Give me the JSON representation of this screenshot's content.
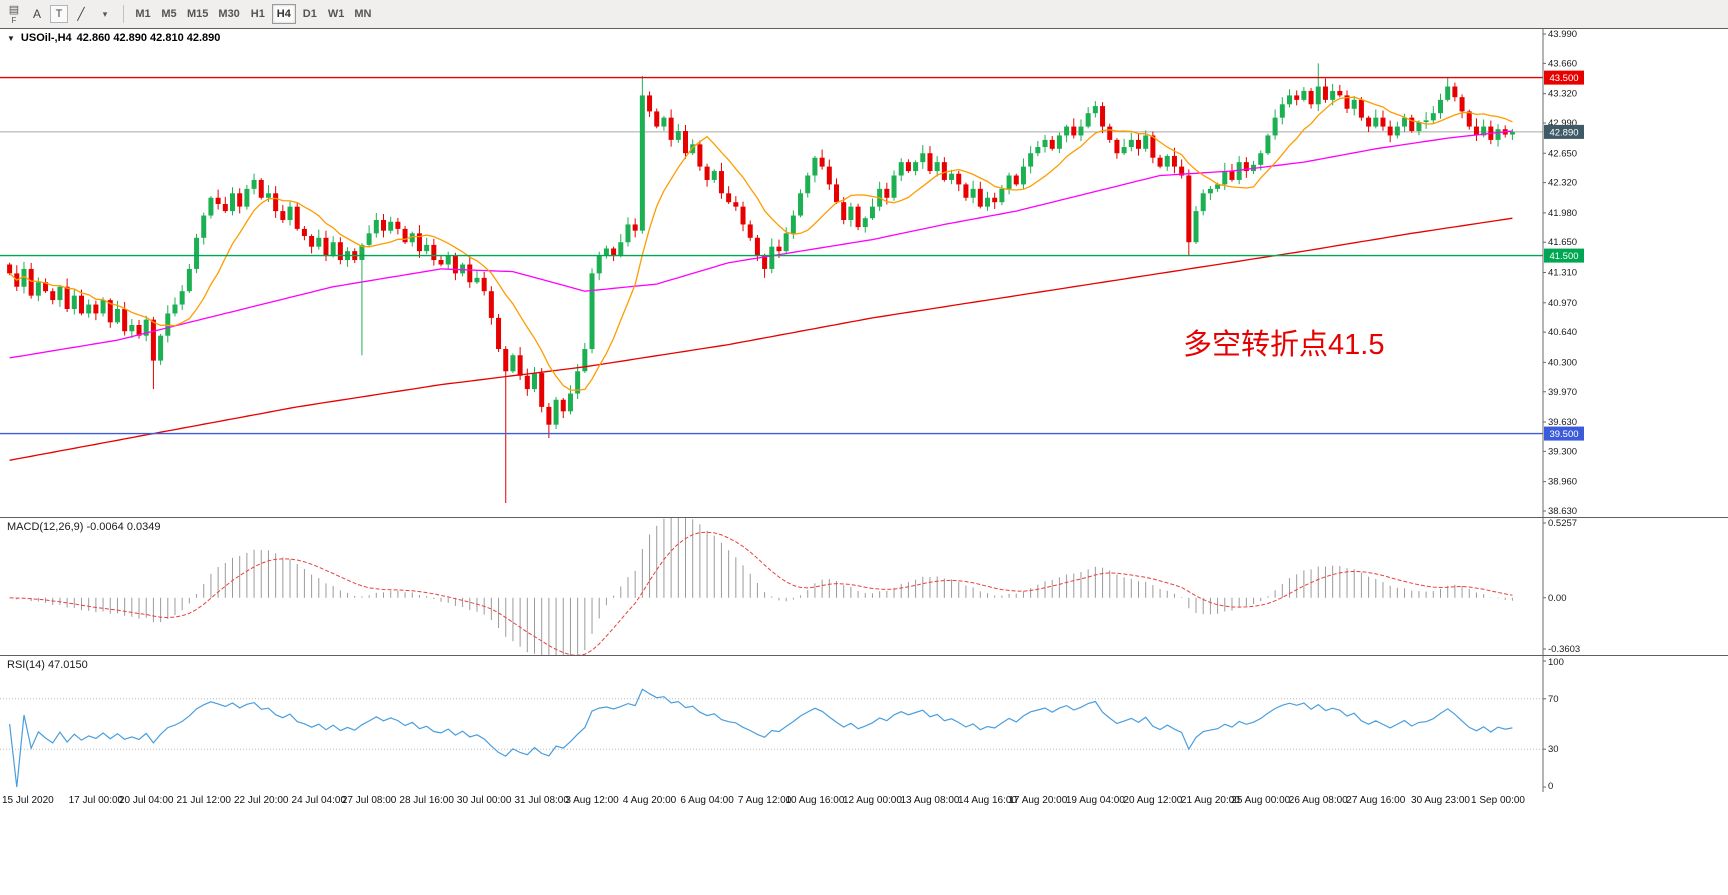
{
  "toolbar": {
    "stack_icon": "▤",
    "stack_label": "F",
    "buttons": [
      {
        "name": "cursor-tool",
        "glyph": "A"
      },
      {
        "name": "text-tool",
        "glyph": "T",
        "boxed": true
      },
      {
        "name": "draw-tool",
        "glyph": "╱"
      },
      {
        "name": "tools-caret",
        "glyph": "▾",
        "caret": true
      }
    ],
    "timeframes": [
      "M1",
      "M5",
      "M15",
      "M30",
      "H1",
      "H4",
      "D1",
      "W1",
      "MN"
    ],
    "active_timeframe": "H4"
  },
  "price_panel": {
    "header_triangle": "▼",
    "header_symbol": "USOil-,H4",
    "header_ohlc": "42.860 42.890 42.810 42.890",
    "annotation": {
      "text": "多空转折点41.5"
    }
  },
  "macd_panel": {
    "header": "MACD(12,26,9) -0.0064 0.0349"
  },
  "rsi_panel": {
    "header": "RSI(14) 47.0150"
  },
  "colors": {
    "up": "#1cb053",
    "down": "#e60000",
    "ma_fast": "#ff9c00",
    "ma_mid": "#ff00ff",
    "ma_slow": "#e60000",
    "hline_red": "#e60000",
    "hline_green": "#00a651",
    "hline_blue": "#3b5bdb",
    "bid_line": "#a8a8a8",
    "bid_tag": "#3d5a66",
    "macd_hist": "#9a9a9a",
    "macd_signal": "#e84040",
    "rsi": "#4a9ede",
    "annotation": "#e60000",
    "axis_text": "#1a1a1a"
  },
  "chart_data": {
    "type": "candlestick",
    "symbol": "USOil-",
    "timeframe": "H4",
    "title": "USOil-,H4 42.860 42.890 42.810 42.890",
    "price_range": [
      38.63,
      43.99
    ],
    "y_ticks": [
      "43.990",
      "43.660",
      "43.320",
      "42.990",
      "42.650",
      "42.320",
      "41.980",
      "41.650",
      "41.310",
      "40.970",
      "40.640",
      "40.300",
      "39.970",
      "39.630",
      "39.300",
      "38.960",
      "38.630"
    ],
    "open_first": 41.4,
    "closes": [
      41.3,
      41.15,
      41.35,
      41.05,
      41.2,
      41.1,
      41.0,
      41.15,
      40.9,
      41.05,
      40.85,
      40.95,
      40.85,
      41.0,
      40.75,
      40.9,
      40.65,
      40.72,
      40.6,
      40.78,
      40.32,
      40.6,
      40.85,
      40.95,
      41.1,
      41.35,
      41.7,
      41.95,
      42.15,
      42.08,
      42.0,
      42.2,
      42.05,
      42.25,
      42.35,
      42.15,
      42.2,
      42.0,
      41.9,
      42.05,
      41.8,
      41.72,
      41.6,
      41.7,
      41.5,
      41.65,
      41.45,
      41.55,
      41.45,
      41.62,
      41.75,
      41.9,
      41.78,
      41.88,
      41.8,
      41.65,
      41.75,
      41.55,
      41.62,
      41.45,
      41.4,
      41.5,
      41.3,
      41.4,
      41.2,
      41.25,
      41.1,
      40.8,
      40.45,
      40.2,
      40.38,
      40.15,
      40.0,
      40.18,
      39.8,
      39.6,
      39.88,
      39.75,
      39.95,
      40.2,
      40.45,
      41.3,
      41.5,
      41.58,
      41.5,
      41.65,
      41.85,
      41.78,
      43.3,
      43.12,
      42.95,
      43.05,
      42.8,
      42.9,
      42.65,
      42.75,
      42.5,
      42.35,
      42.45,
      42.2,
      42.1,
      42.05,
      41.85,
      41.7,
      41.5,
      41.35,
      41.6,
      41.55,
      41.75,
      41.95,
      42.2,
      42.4,
      42.6,
      42.5,
      42.3,
      42.1,
      41.9,
      42.05,
      41.82,
      41.92,
      42.05,
      42.25,
      42.15,
      42.4,
      42.55,
      42.45,
      42.55,
      42.65,
      42.45,
      42.55,
      42.35,
      42.42,
      42.3,
      42.15,
      42.25,
      42.05,
      42.15,
      42.1,
      42.25,
      42.4,
      42.3,
      42.5,
      42.65,
      42.72,
      42.8,
      42.7,
      42.85,
      42.95,
      42.85,
      42.95,
      43.1,
      43.18,
      42.95,
      42.8,
      42.65,
      42.72,
      42.8,
      42.7,
      42.85,
      42.6,
      42.5,
      42.62,
      42.5,
      42.4,
      41.65,
      42.0,
      42.2,
      42.25,
      42.3,
      42.45,
      42.35,
      42.55,
      42.45,
      42.52,
      42.65,
      42.85,
      43.05,
      43.2,
      43.3,
      43.25,
      43.35,
      43.2,
      43.4,
      43.25,
      43.35,
      43.3,
      43.15,
      43.25,
      43.05,
      42.95,
      43.05,
      42.95,
      42.85,
      42.95,
      43.05,
      42.9,
      43.0,
      43.02,
      43.1,
      43.25,
      43.4,
      43.28,
      43.12,
      42.95,
      42.85,
      42.95,
      42.8,
      42.92,
      42.86,
      42.89
    ],
    "special_wicks": [
      {
        "i": 20,
        "low": 40.0
      },
      {
        "i": 34,
        "high": 42.42
      },
      {
        "i": 49,
        "low": 40.38
      },
      {
        "i": 69,
        "low": 38.72
      },
      {
        "i": 75,
        "low": 39.45
      },
      {
        "i": 88,
        "high": 43.52
      },
      {
        "i": 105,
        "low": 41.25
      },
      {
        "i": 164,
        "low": 41.5
      },
      {
        "i": 182,
        "high": 43.66
      },
      {
        "i": 200,
        "high": 43.5
      }
    ],
    "ma_fast_period": 10,
    "ma_mid_waypoints": [
      [
        0,
        40.35
      ],
      [
        15,
        40.55
      ],
      [
        30,
        40.85
      ],
      [
        45,
        41.15
      ],
      [
        60,
        41.35
      ],
      [
        70,
        41.32
      ],
      [
        80,
        41.1
      ],
      [
        90,
        41.18
      ],
      [
        100,
        41.42
      ],
      [
        110,
        41.55
      ],
      [
        120,
        41.68
      ],
      [
        130,
        41.85
      ],
      [
        140,
        42.0
      ],
      [
        150,
        42.2
      ],
      [
        160,
        42.4
      ],
      [
        170,
        42.45
      ],
      [
        180,
        42.55
      ],
      [
        190,
        42.7
      ],
      [
        200,
        42.82
      ],
      [
        209,
        42.9
      ]
    ],
    "ma_slow_waypoints": [
      [
        0,
        39.2
      ],
      [
        20,
        39.5
      ],
      [
        40,
        39.8
      ],
      [
        60,
        40.05
      ],
      [
        80,
        40.25
      ],
      [
        100,
        40.5
      ],
      [
        120,
        40.8
      ],
      [
        140,
        41.05
      ],
      [
        160,
        41.3
      ],
      [
        180,
        41.55
      ],
      [
        195,
        41.75
      ],
      [
        209,
        41.92
      ]
    ],
    "hlines": [
      {
        "price": 43.5,
        "label": "43.500",
        "color_key": "hline_red"
      },
      {
        "price": 41.5,
        "label": "41.500",
        "color_key": "hline_green"
      },
      {
        "price": 39.5,
        "label": "39.500",
        "color_key": "hline_blue"
      }
    ],
    "bid": {
      "price": 42.89,
      "label": "42.890"
    },
    "macd": {
      "fast": 12,
      "slow": 26,
      "signal": 9,
      "range": [
        -0.3603,
        0.5257
      ],
      "values_label": "-0.0064 0.0349",
      "ticks": [
        {
          "label": "0.5257",
          "v": 0.5257
        },
        {
          "label": "0.00",
          "v": 0
        },
        {
          "label": "-0.3603",
          "v": -0.3603
        }
      ]
    },
    "rsi": {
      "period": 14,
      "range": [
        0,
        100
      ],
      "levels": [
        70,
        30
      ],
      "value_label": "47.0150",
      "ticks": [
        {
          "label": "100",
          "v": 100
        },
        {
          "label": "70",
          "v": 70
        },
        {
          "label": "30",
          "v": 30
        },
        {
          "label": "0",
          "v": 0
        }
      ]
    },
    "time_labels": [
      {
        "t": "15 Jul 2020",
        "i": 0
      },
      {
        "t": "17 Jul 00:00",
        "i": 12
      },
      {
        "t": "20 Jul 04:00",
        "i": 19
      },
      {
        "t": "21 Jul 12:00",
        "i": 27
      },
      {
        "t": "22 Jul 20:00",
        "i": 35
      },
      {
        "t": "24 Jul 04:00",
        "i": 43
      },
      {
        "t": "27 Jul 08:00",
        "i": 50
      },
      {
        "t": "28 Jul 16:00",
        "i": 58
      },
      {
        "t": "30 Jul 00:00",
        "i": 66
      },
      {
        "t": "31 Jul 08:00",
        "i": 74
      },
      {
        "t": "3 Aug 12:00",
        "i": 81
      },
      {
        "t": "4 Aug 20:00",
        "i": 89
      },
      {
        "t": "6 Aug 04:00",
        "i": 97
      },
      {
        "t": "7 Aug 12:00",
        "i": 105
      },
      {
        "t": "10 Aug 16:00",
        "i": 112
      },
      {
        "t": "12 Aug 00:00",
        "i": 120
      },
      {
        "t": "13 Aug 08:00",
        "i": 128
      },
      {
        "t": "14 Aug 16:00",
        "i": 136
      },
      {
        "t": "17 Aug 20:00",
        "i": 143
      },
      {
        "t": "19 Aug 04:00",
        "i": 151
      },
      {
        "t": "20 Aug 12:00",
        "i": 159
      },
      {
        "t": "21 Aug 20:00",
        "i": 167
      },
      {
        "t": "25 Aug 00:00",
        "i": 174
      },
      {
        "t": "26 Aug 08:00",
        "i": 182
      },
      {
        "t": "27 Aug 16:00",
        "i": 190
      },
      {
        "t": "30 Aug 23:00",
        "i": 199
      },
      {
        "t": "1 Sep 00:00",
        "i": 207
      }
    ]
  }
}
